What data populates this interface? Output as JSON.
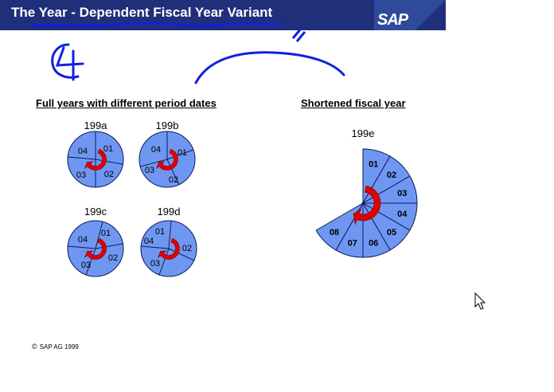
{
  "header": {
    "title": "The Year - Dependent Fiscal Year Variant",
    "logo_text": "SAP",
    "bg_color": "#1f2f7a",
    "logo_bg_color": "#2f4a9a"
  },
  "sections": {
    "left_title": "Full years with different period dates",
    "right_title": "Shortened fiscal year"
  },
  "pies": [
    {
      "label": "199a",
      "periods": [
        "01",
        "02",
        "03",
        "04"
      ]
    },
    {
      "label": "199b",
      "periods": [
        "01",
        "02",
        "03",
        "04"
      ]
    },
    {
      "label": "199c",
      "periods": [
        "01",
        "02",
        "03",
        "04"
      ]
    },
    {
      "label": "199d",
      "periods": [
        "01",
        "02",
        "03",
        "04"
      ]
    }
  ],
  "short_year": {
    "label": "199e",
    "periods": [
      "01",
      "02",
      "03",
      "04",
      "05",
      "06",
      "07",
      "08"
    ]
  },
  "colors": {
    "pie_fill": "#6f97f2",
    "pie_stroke": "#0a1a5a",
    "arrow": "#e00000",
    "annotation": "#1020e0"
  },
  "footer": {
    "copyright_symbol": "©",
    "text": "SAP AG 1999"
  }
}
